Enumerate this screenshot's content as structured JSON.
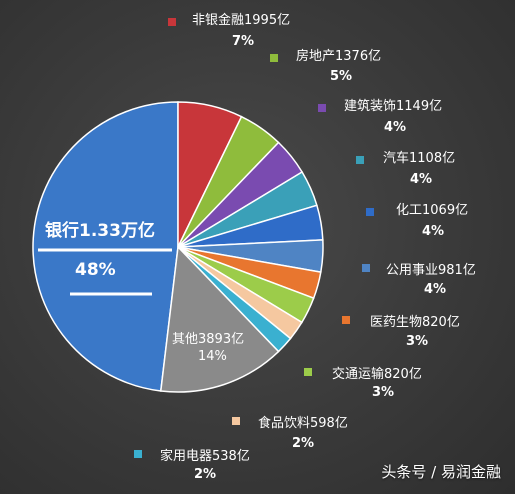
{
  "chart_data": {
    "type": "pie",
    "title": "",
    "slices": [
      {
        "label": "银行1.33万亿",
        "percent": "48%",
        "value": 13300,
        "color": "#3a78c8"
      },
      {
        "label": "非银金融1995亿",
        "percent": "7%",
        "value": 1995,
        "color": "#c8363a"
      },
      {
        "label": "房地产1376亿",
        "percent": "5%",
        "value": 1376,
        "color": "#8fbc3c"
      },
      {
        "label": "建筑装饰1149亿",
        "percent": "4%",
        "value": 1149,
        "color": "#7a4bb0"
      },
      {
        "label": "汽车1108亿",
        "percent": "4%",
        "value": 1108,
        "color": "#3aa0b8"
      },
      {
        "label": "化工1069亿",
        "percent": "4%",
        "value": 1069,
        "color": "#2f6cc8"
      },
      {
        "label": "公用事业981亿",
        "percent": "4%",
        "value": 981,
        "color": "#4f84c4"
      },
      {
        "label": "医药生物820亿",
        "percent": "3%",
        "value": 820,
        "color": "#e8762f"
      },
      {
        "label": "交通运输820亿",
        "percent": "3%",
        "value": 820,
        "color": "#9ccc4a"
      },
      {
        "label": "食品饮料598亿",
        "percent": "2%",
        "value": 598,
        "color": "#f5c8a0"
      },
      {
        "label": "家用电器538亿",
        "percent": "2%",
        "value": 538,
        "color": "#3ab0d0"
      },
      {
        "label": "其他3893亿",
        "percent": "14%",
        "value": 3893,
        "color": "#8a8a8a"
      }
    ]
  },
  "watermark": "头条号 / 易润金融"
}
